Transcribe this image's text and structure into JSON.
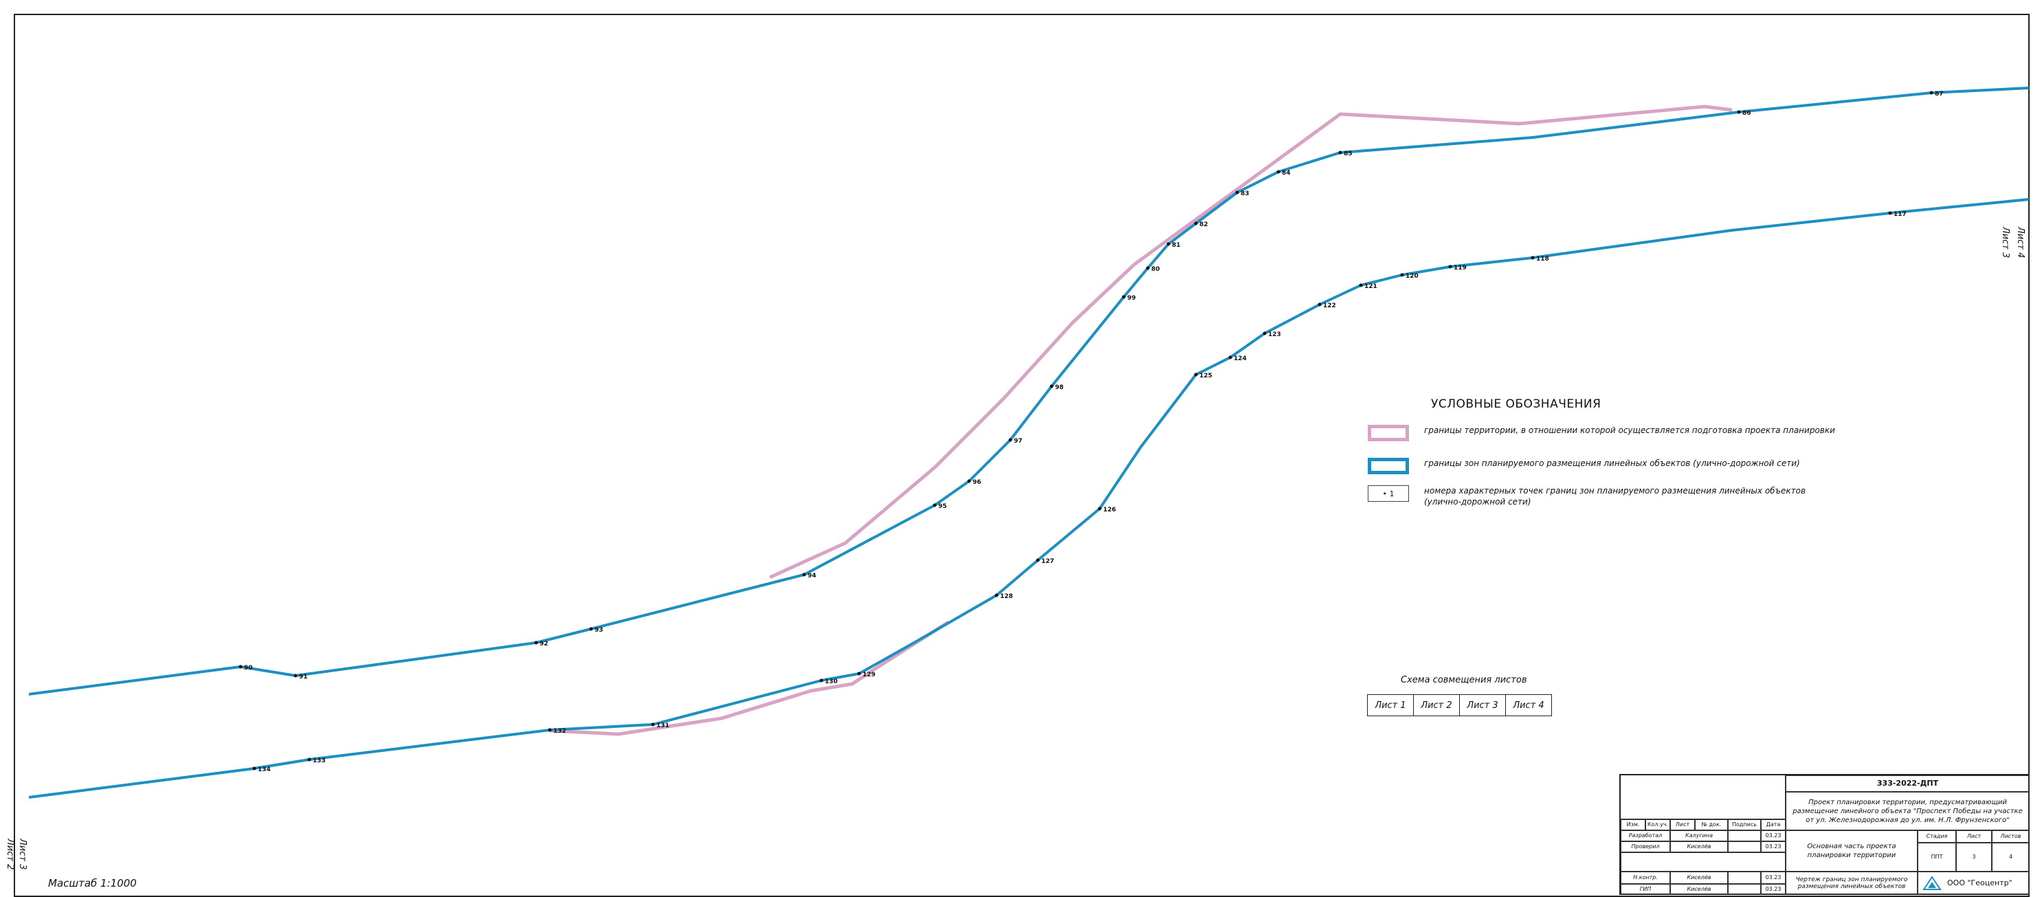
{
  "legend": {
    "title": "УСЛОВНЫЕ ОБОЗНАЧЕНИЯ",
    "items": [
      {
        "swatch": "pink",
        "text": "границы территории, в отношении которой осуществляется подготовка проекта планировки",
        "color": "#d9a3c6"
      },
      {
        "swatch": "blue",
        "text": "границы зон планируемого размещения линейных объектов (улично-дорожной сети)",
        "color": "#1d8fc1"
      },
      {
        "swatch": "point",
        "symbol": "• 1",
        "text": "номера характерных точек границ зон планируемого размещения линейных объектов (улично-дорожной сети)"
      }
    ]
  },
  "scheme": {
    "title": "Схема совмещения листов",
    "sheets": [
      "Лист 1",
      "Лист 2",
      "Лист 3",
      "Лист 4"
    ]
  },
  "side_labels": {
    "left_top": "Лист 3",
    "left_bottom": "Лист 2",
    "right_top": "Лист 4",
    "right_bottom": "Лист 3"
  },
  "scale": "Масштаб 1:1000",
  "title_block": {
    "code": "333-2022-ДПТ",
    "project": "Проект планировки территории, предусматривающий размещение линейного объекта \"Проспект Победы на участке от ул. Железнодорожная до ул. им. Н.Л. Фрунзенского\"",
    "section": "Основная часть проекта планировки территории",
    "sheet_title": "Чертеж границ зон планируемого размещения линейных объектов",
    "stage_label": "Стадия",
    "sheet_label": "Лист",
    "sheets_label": "Листов",
    "stage": "ППТ",
    "sheet": "3",
    "sheets": "4",
    "org": "ООО \"Геоцентр\"",
    "header_cols": [
      "Изм.",
      "Кол.уч.",
      "Лист",
      "№ док.",
      "Подпись",
      "Дата"
    ],
    "rows": [
      {
        "role": "Разработал",
        "name": "Калугина",
        "date": "03.23"
      },
      {
        "role": "Проверил",
        "name": "Киселёв",
        "date": "03.23"
      },
      {
        "role": "Н.контр.",
        "name": "Киселёв",
        "date": "03.23"
      },
      {
        "role": "ГИП",
        "name": "Киселёв",
        "date": "03.23"
      }
    ]
  },
  "points_upper": [
    {
      "label": "90"
    },
    {
      "label": "91"
    },
    {
      "label": "92"
    },
    {
      "label": "93"
    },
    {
      "label": "94"
    },
    {
      "label": "95"
    },
    {
      "label": "96"
    },
    {
      "label": "97"
    },
    {
      "label": "98"
    },
    {
      "label": "99"
    },
    {
      "label": "80"
    },
    {
      "label": "81"
    },
    {
      "label": "82"
    },
    {
      "label": "83"
    },
    {
      "label": "84"
    },
    {
      "label": "85"
    },
    {
      "label": "86"
    },
    {
      "label": "87"
    }
  ],
  "points_lower": [
    {
      "label": "134"
    },
    {
      "label": "133"
    },
    {
      "label": "132"
    },
    {
      "label": "131"
    },
    {
      "label": "130"
    },
    {
      "label": "129"
    },
    {
      "label": "128"
    },
    {
      "label": "127"
    },
    {
      "label": "126"
    },
    {
      "label": "125"
    },
    {
      "label": "124"
    },
    {
      "label": "123"
    },
    {
      "label": "122"
    },
    {
      "label": "121"
    },
    {
      "label": "120"
    },
    {
      "label": "119"
    },
    {
      "label": "118"
    },
    {
      "label": "117"
    }
  ]
}
